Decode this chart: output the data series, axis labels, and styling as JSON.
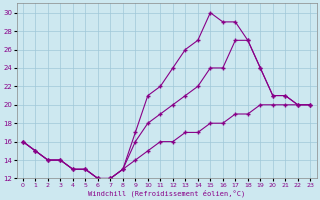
{
  "xlabel": "Windchill (Refroidissement éolien,°C)",
  "background_color": "#cde8f0",
  "grid_color": "#a0c8d8",
  "line_color": "#880088",
  "xlim": [
    -0.5,
    23.5
  ],
  "ylim": [
    12,
    31
  ],
  "yticks": [
    12,
    14,
    16,
    18,
    20,
    22,
    24,
    26,
    28,
    30
  ],
  "xticks": [
    0,
    1,
    2,
    3,
    4,
    5,
    6,
    7,
    8,
    9,
    10,
    11,
    12,
    13,
    14,
    15,
    16,
    17,
    18,
    19,
    20,
    21,
    22,
    23
  ],
  "curve1_x": [
    0,
    1,
    2,
    3,
    4,
    5,
    6,
    7,
    8,
    9,
    10,
    11,
    12,
    13,
    14,
    15,
    16,
    17,
    18,
    19,
    20,
    21,
    22,
    23
  ],
  "curve1_y": [
    16,
    15,
    14,
    14,
    13,
    13,
    12,
    12,
    13,
    17,
    21,
    22,
    24,
    26,
    27,
    30,
    29,
    29,
    27,
    24,
    21,
    21,
    20,
    20
  ],
  "curve2_x": [
    0,
    1,
    2,
    3,
    4,
    5,
    6,
    7,
    8,
    9,
    10,
    11,
    12,
    13,
    14,
    15,
    16,
    17,
    18,
    19,
    20,
    21,
    22,
    23
  ],
  "curve2_y": [
    16,
    15,
    14,
    14,
    13,
    13,
    12,
    12,
    13,
    16,
    18,
    19,
    20,
    21,
    22,
    24,
    24,
    27,
    27,
    24,
    21,
    21,
    20,
    20
  ],
  "curve3_x": [
    0,
    1,
    2,
    3,
    4,
    5,
    6,
    7,
    8,
    9,
    10,
    11,
    12,
    13,
    14,
    15,
    16,
    17,
    18,
    19,
    20,
    21,
    22,
    23
  ],
  "curve3_y": [
    16,
    15,
    14,
    14,
    13,
    13,
    12,
    12,
    13,
    14,
    15,
    16,
    16,
    17,
    17,
    18,
    18,
    19,
    19,
    20,
    20,
    20,
    20,
    20
  ]
}
